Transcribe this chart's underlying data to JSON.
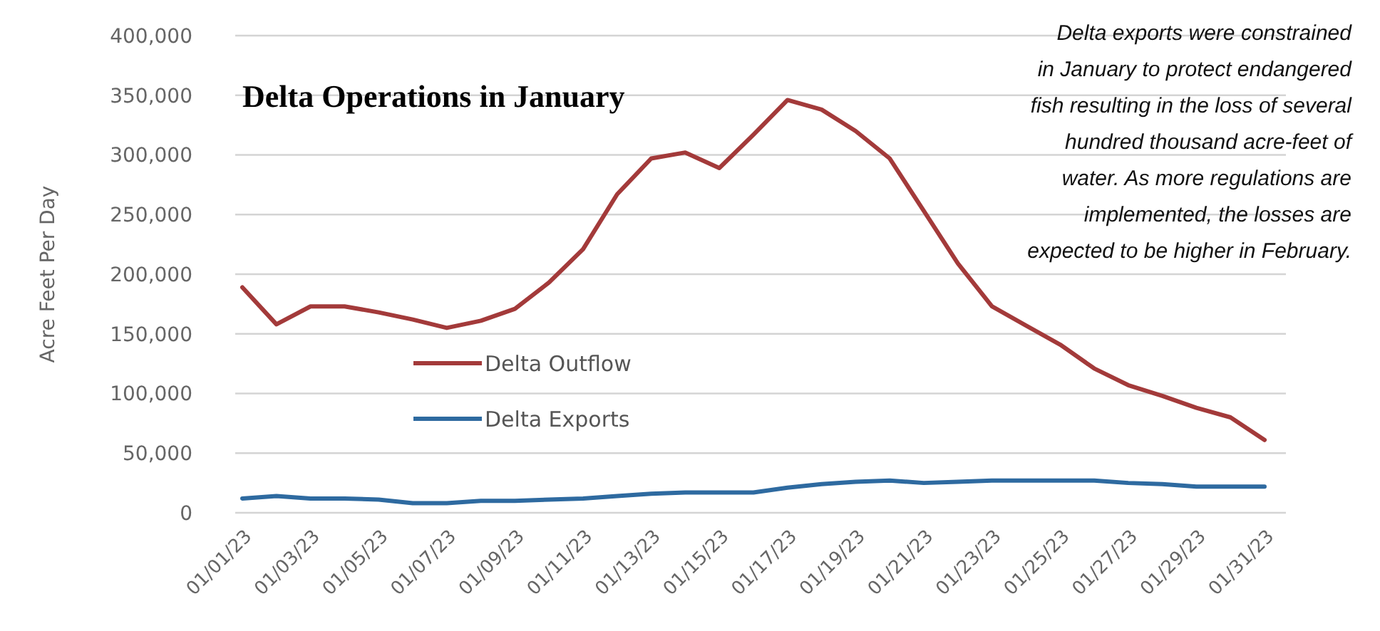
{
  "chart_data": {
    "type": "line",
    "title": "Delta Operations in January",
    "ylabel": "Acre Feet Per Day",
    "categories": [
      "01/01/23",
      null,
      "01/03/23",
      null,
      "01/05/23",
      null,
      "01/07/23",
      null,
      "01/09/23",
      null,
      "01/11/23",
      null,
      "01/13/23",
      null,
      "01/15/23",
      null,
      "01/17/23",
      null,
      "01/19/23",
      null,
      "01/21/23",
      null,
      "01/23/23",
      null,
      "01/25/23",
      null,
      "01/27/23",
      null,
      "01/29/23",
      null,
      "01/31/23"
    ],
    "series": [
      {
        "name": "Delta Outflow",
        "color": "#a33a3a",
        "values": [
          189000,
          158000,
          173000,
          173000,
          168000,
          162000,
          155000,
          161000,
          171000,
          193000,
          221000,
          267000,
          297000,
          302000,
          289000,
          317000,
          346000,
          338000,
          320000,
          297000,
          253000,
          209000,
          173000,
          157000,
          141000,
          121000,
          107000,
          98000,
          88000,
          80000,
          61000
        ]
      },
      {
        "name": "Delta Exports",
        "color": "#2e6aa0",
        "values": [
          12000,
          14000,
          12000,
          12000,
          11000,
          8000,
          8000,
          10000,
          10000,
          11000,
          12000,
          14000,
          16000,
          17000,
          17000,
          17000,
          21000,
          24000,
          26000,
          27000,
          25000,
          26000,
          27000,
          27000,
          27000,
          27000,
          25000,
          24000,
          22000,
          22000,
          22000
        ]
      }
    ],
    "ylim": [
      0,
      400000
    ],
    "yticks": [
      {
        "value": 0,
        "label": "0"
      },
      {
        "value": 50000,
        "label": "50,000"
      },
      {
        "value": 100000,
        "label": "100,000"
      },
      {
        "value": 150000,
        "label": "150,000"
      },
      {
        "value": 200000,
        "label": "200,000"
      },
      {
        "value": 250000,
        "label": "250,000"
      },
      {
        "value": 300000,
        "label": "300,000"
      },
      {
        "value": 350000,
        "label": "350,000"
      },
      {
        "value": 400000,
        "label": "400,000"
      }
    ],
    "grid": "y",
    "legend": "center",
    "marker": "none",
    "line_style": "solid",
    "annotations": [
      "Delta exports were constrained\nin January to protect endangered\nfish resulting in the loss of several\nhundred thousand acre-feet of\nwater. As more regulations are\nimplemented, the losses are\nexpected to be higher in February."
    ]
  }
}
